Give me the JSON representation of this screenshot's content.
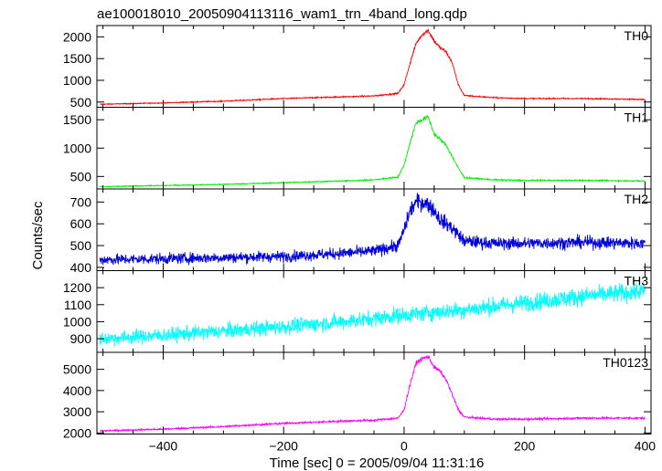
{
  "title": "ae100018010_20050904113116_wam1_trn_4band_long.qdp",
  "xlabel": "Time [sec] 0 = 2005/09/04 11:31:16",
  "ylabel": "Counts/sec",
  "chart_data": {
    "type": "line",
    "title": "ae100018010_20050904113116_wam1_trn_4band_long.qdp",
    "xlabel": "Time [sec] 0 = 2005/09/04 11:31:16",
    "ylabel": "Counts/sec",
    "xlim": [
      -510,
      410
    ],
    "x_ticks": [
      -400,
      -200,
      0,
      200,
      400
    ],
    "legend": "none",
    "grid": false,
    "panels": [
      {
        "name": "TH0",
        "color": "#ff0000",
        "ylim": [
          380,
          2260
        ],
        "y_ticks": [
          500,
          1000,
          1500,
          2000
        ],
        "x": [
          -500,
          -400,
          -300,
          -200,
          -100,
          -50,
          -10,
          0,
          10,
          20,
          30,
          40,
          50,
          60,
          70,
          80,
          90,
          100,
          150,
          200,
          300,
          400
        ],
        "y": [
          450,
          480,
          520,
          580,
          620,
          640,
          700,
          900,
          1400,
          1850,
          2050,
          2150,
          1900,
          1750,
          1650,
          1400,
          900,
          650,
          600,
          580,
          580,
          560
        ]
      },
      {
        "name": "TH1",
        "color": "#00ee00",
        "ylim": [
          280,
          1720
        ],
        "y_ticks": [
          500,
          1000,
          1500
        ],
        "x": [
          -500,
          -400,
          -300,
          -200,
          -100,
          -50,
          -10,
          0,
          10,
          20,
          30,
          40,
          50,
          60,
          70,
          80,
          90,
          100,
          150,
          200,
          300,
          400
        ],
        "y": [
          320,
          340,
          360,
          390,
          420,
          440,
          490,
          700,
          1100,
          1450,
          1500,
          1550,
          1250,
          1150,
          1050,
          850,
          650,
          480,
          440,
          430,
          430,
          420
        ]
      },
      {
        "name": "TH2",
        "color": "#0000dd",
        "ylim": [
          385,
          760
        ],
        "y_ticks": [
          400,
          500,
          600,
          700
        ],
        "x": [
          -500,
          -400,
          -300,
          -200,
          -100,
          -50,
          -10,
          0,
          10,
          20,
          30,
          40,
          50,
          60,
          70,
          80,
          90,
          100,
          150,
          200,
          300,
          400
        ],
        "y": [
          435,
          440,
          445,
          450,
          465,
          475,
          500,
          570,
          660,
          700,
          700,
          690,
          660,
          620,
          600,
          580,
          550,
          520,
          510,
          510,
          515,
          510
        ]
      },
      {
        "name": "TH3",
        "color": "#00ffff",
        "ylim": [
          820,
          1300
        ],
        "y_ticks": [
          900,
          1000,
          1100,
          1200
        ],
        "x": [
          -500,
          -400,
          -300,
          -200,
          -100,
          0,
          100,
          200,
          300,
          400
        ],
        "y": [
          900,
          920,
          945,
          970,
          1000,
          1040,
          1070,
          1110,
          1150,
          1180
        ]
      },
      {
        "name": "TH0123",
        "color": "#ff00ff",
        "ylim": [
          1950,
          5800
        ],
        "y_ticks": [
          2000,
          3000,
          4000,
          5000
        ],
        "x": [
          -500,
          -400,
          -300,
          -200,
          -100,
          -50,
          -10,
          0,
          10,
          20,
          30,
          40,
          50,
          60,
          70,
          80,
          90,
          100,
          150,
          200,
          300,
          400
        ],
        "y": [
          2100,
          2180,
          2300,
          2450,
          2560,
          2600,
          2700,
          3100,
          4300,
          5300,
          5500,
          5600,
          5100,
          4900,
          4500,
          3800,
          3100,
          2750,
          2650,
          2650,
          2700,
          2700
        ]
      }
    ]
  }
}
